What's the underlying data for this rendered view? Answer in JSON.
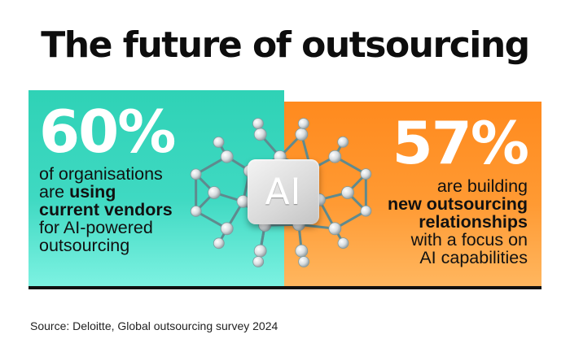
{
  "title": "The future of outsourcing",
  "left_stat": {
    "value": "60%",
    "lines": {
      "l1": "of organisations",
      "l2_pre": "are ",
      "l2_bold": "using",
      "l3_bold": "current vendors",
      "l4": "for AI-powered",
      "l5": "outsourcing"
    }
  },
  "right_stat": {
    "value": "57%",
    "lines": {
      "l1": "are building",
      "l2_bold": "new outsourcing",
      "l3_bold": "relationships",
      "l4": "with a focus on",
      "l5": "AI capabilities"
    }
  },
  "emblem": {
    "text": "AI"
  },
  "source": "Source: Deloitte, Global outsourcing survey 2024",
  "colors": {
    "teal": "#2fd2b6",
    "orange": "#ff8a1e",
    "text": "#111111",
    "stat": "#ffffff"
  },
  "icons": [
    "ai-network-icon"
  ]
}
